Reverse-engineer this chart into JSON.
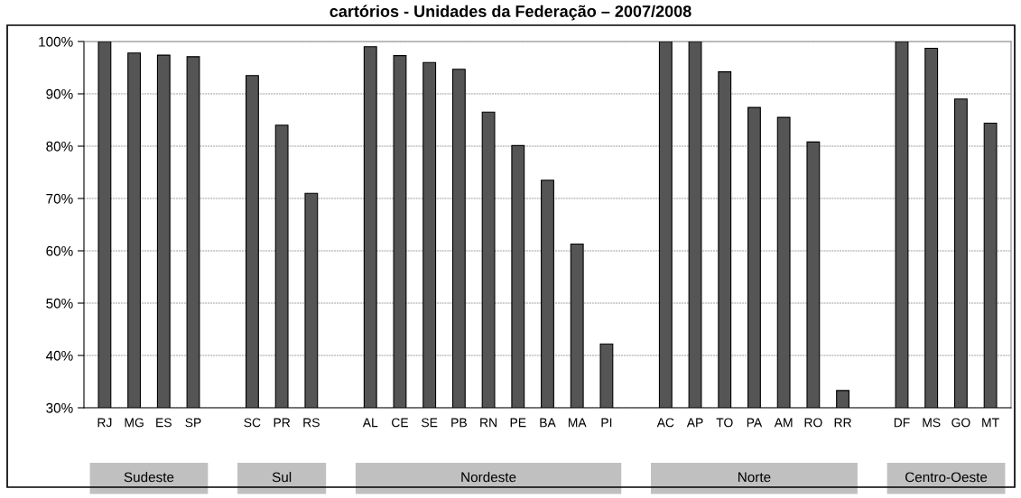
{
  "chart_data": {
    "type": "bar",
    "title": "cartórios - Unidades da Federação – 2007/2008",
    "categories": [
      "RJ",
      "MG",
      "ES",
      "SP",
      null,
      "SC",
      "PR",
      "RS",
      null,
      "AL",
      "CE",
      "SE",
      "PB",
      "RN",
      "PE",
      "BA",
      "MA",
      "PI",
      null,
      "AC",
      "AP",
      "TO",
      "PA",
      "AM",
      "RO",
      "RR",
      null,
      "DF",
      "MS",
      "GO",
      "MT"
    ],
    "values": [
      100,
      97.8,
      97.4,
      97.1,
      null,
      93.5,
      84,
      71,
      null,
      99,
      97.3,
      96,
      94.7,
      86.5,
      80.1,
      73.5,
      61.3,
      42.2,
      null,
      100,
      100,
      94.2,
      87.4,
      85.5,
      80.8,
      33.3,
      null,
      100,
      98.7,
      89,
      84.4
    ],
    "color": "#555555",
    "ylim": [
      30,
      100
    ],
    "yticks": [
      {
        "value": 30,
        "label": "30%"
      },
      {
        "value": 40,
        "label": "40%"
      },
      {
        "value": 50,
        "label": "50%"
      },
      {
        "value": 60,
        "label": "60%"
      },
      {
        "value": 70,
        "label": "70%"
      },
      {
        "value": 80,
        "label": "80%"
      },
      {
        "value": 90,
        "label": "90%"
      },
      {
        "value": 100,
        "label": "100%"
      }
    ],
    "grid": "y",
    "annotations": [
      "Sudeste",
      "Sul",
      "Nordeste",
      "Norte",
      "Centro-Oeste"
    ]
  }
}
